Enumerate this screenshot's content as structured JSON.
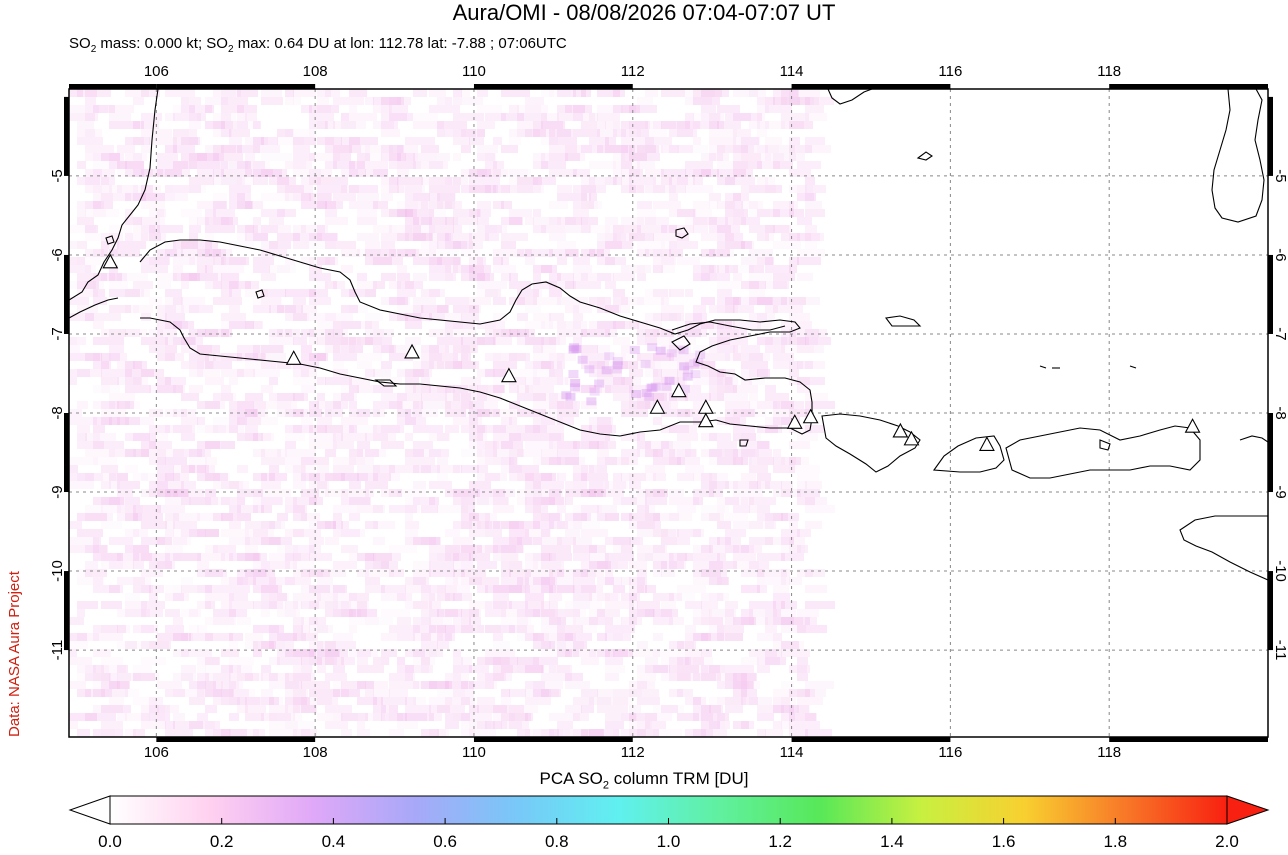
{
  "header": {
    "title": "Aura/OMI - 08/08/2026 07:04-07:07 UT",
    "subtitle_prefix": "SO",
    "subtitle_sub": "2",
    "subtitle_mid": " mass: 0.000 kt; SO",
    "subtitle_sub2": "2",
    "subtitle_suffix": " max: 0.64 DU at lon: 112.78 lat: -7.88 ; 07:06UTC"
  },
  "credit": "Data: NASA Aura Project",
  "map": {
    "lon_range": [
      104.9,
      120.0
    ],
    "lat_range": [
      -12.1,
      -3.9
    ],
    "lon_ticks": [
      "106",
      "108",
      "110",
      "112",
      "114",
      "116",
      "118"
    ],
    "lat_ticks": [
      "-5",
      "-6",
      "-7",
      "-8",
      "-9",
      "-10",
      "-11"
    ],
    "grid": "dashed",
    "volcanoes": [
      {
        "lon": 105.42,
        "lat": -6.1
      },
      {
        "lon": 107.73,
        "lat": -7.32
      },
      {
        "lon": 109.22,
        "lat": -7.24
      },
      {
        "lon": 110.44,
        "lat": -7.54
      },
      {
        "lon": 112.31,
        "lat": -7.94
      },
      {
        "lon": 112.58,
        "lat": -7.73
      },
      {
        "lon": 112.92,
        "lat": -7.94
      },
      {
        "lon": 112.92,
        "lat": -8.11
      },
      {
        "lon": 114.04,
        "lat": -8.13
      },
      {
        "lon": 114.24,
        "lat": -8.06
      },
      {
        "lon": 115.37,
        "lat": -8.24
      },
      {
        "lon": 115.51,
        "lat": -8.34
      },
      {
        "lon": 116.46,
        "lat": -8.41
      },
      {
        "lon": 119.05,
        "lat": -8.18
      }
    ]
  },
  "colorbar": {
    "label_prefix": "PCA SO",
    "label_sub": "2",
    "label_suffix": " column TRM [DU]",
    "ticks": [
      "0.0",
      "0.2",
      "0.4",
      "0.6",
      "0.8",
      "1.0",
      "1.2",
      "1.4",
      "1.6",
      "1.8",
      "2.0"
    ],
    "range": [
      0.0,
      2.0
    ],
    "colors": [
      "#ffffff",
      "#ffd0f0",
      "#e0a8f8",
      "#a8a8f8",
      "#78c8f8",
      "#60f0f0",
      "#60f0a0",
      "#58e858",
      "#c8f040",
      "#f8d030",
      "#f87828",
      "#f82010"
    ]
  }
}
